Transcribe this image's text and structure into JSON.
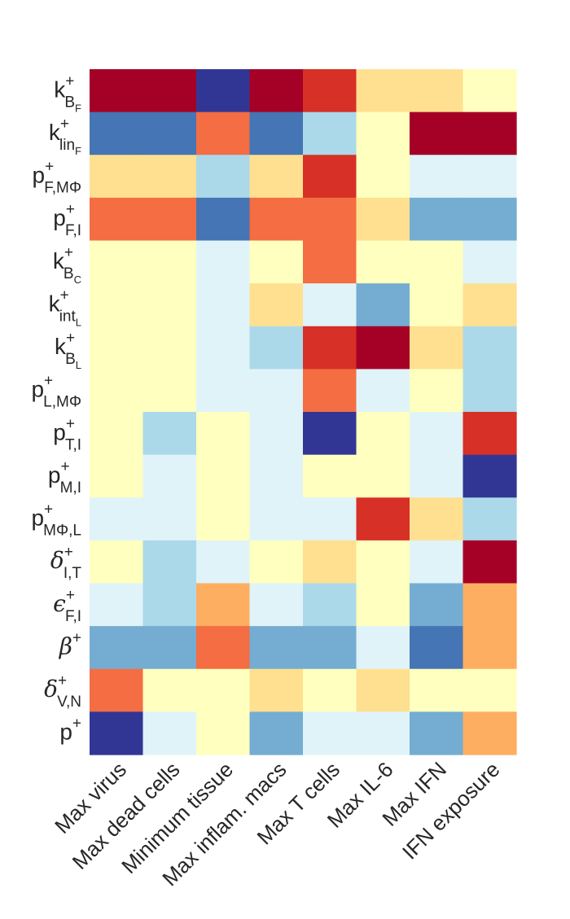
{
  "chart_data": {
    "type": "heatmap",
    "title": "",
    "xlabel": "",
    "ylabel": "",
    "colorbar": false,
    "colormap": "RdYlBu_r (discrete levels -4 .. 4: dark blue to dark red)",
    "palette": {
      "-4": "#313695",
      "-3": "#4575b4",
      "-2": "#74add1",
      "-1": "#abd9e9",
      "0": "#e0f3f8",
      "1": "#ffffbf",
      "2": "#fee090",
      "3": "#fdae61",
      "4": "#f46d43",
      "5": "#d73027",
      "6": "#a50026"
    },
    "columns": [
      "Max virus",
      "Max dead cells",
      "Minimum tissue",
      "Max inflam. macs",
      "Max T cells",
      "Max IL-6",
      "Max IFN",
      "IFN exposure"
    ],
    "rows": [
      {
        "base": "k",
        "sup": "+",
        "sub": "B",
        "subsub": "F",
        "greek": false
      },
      {
        "base": "k",
        "sup": "+",
        "sub": "lin",
        "subsub": "F",
        "greek": false
      },
      {
        "base": "p",
        "sup": "+",
        "sub": "F,MΦ",
        "subsub": "",
        "greek": false
      },
      {
        "base": "p",
        "sup": "+",
        "sub": "F,I",
        "subsub": "",
        "greek": false
      },
      {
        "base": "k",
        "sup": "+",
        "sub": "B",
        "subsub": "C",
        "greek": false
      },
      {
        "base": "k",
        "sup": "+",
        "sub": "int",
        "subsub": "L",
        "greek": false
      },
      {
        "base": "k",
        "sup": "+",
        "sub": "B",
        "subsub": "L",
        "greek": false
      },
      {
        "base": "p",
        "sup": "+",
        "sub": "L,MΦ",
        "subsub": "",
        "greek": false
      },
      {
        "base": "p",
        "sup": "+",
        "sub": "T,I",
        "subsub": "",
        "greek": false
      },
      {
        "base": "p",
        "sup": "+",
        "sub": "M,I",
        "subsub": "",
        "greek": false
      },
      {
        "base": "p",
        "sup": "+",
        "sub": "MΦ,L",
        "subsub": "",
        "greek": false
      },
      {
        "base": "δ",
        "sup": "+",
        "sub": "I,T",
        "subsub": "",
        "greek": true
      },
      {
        "base": "ϵ",
        "sup": "+",
        "sub": "F,I",
        "subsub": "",
        "greek": true
      },
      {
        "base": "β",
        "sup": "+",
        "sub": "",
        "subsub": "",
        "greek": true
      },
      {
        "base": "δ",
        "sup": "+",
        "sub": "V,N",
        "subsub": "",
        "greek": true
      },
      {
        "base": "p",
        "sup": "+",
        "sub": "",
        "subsub": "",
        "greek": false
      }
    ],
    "values": [
      [
        6,
        6,
        -4,
        6,
        5,
        2,
        2,
        1
      ],
      [
        -3,
        -3,
        4,
        -3,
        -1,
        1,
        6,
        6
      ],
      [
        2,
        2,
        -1,
        2,
        5,
        1,
        0,
        0
      ],
      [
        4,
        4,
        -3,
        4,
        4,
        2,
        -2,
        -2
      ],
      [
        1,
        1,
        0,
        1,
        4,
        1,
        1,
        0
      ],
      [
        1,
        1,
        0,
        2,
        0,
        -2,
        1,
        2
      ],
      [
        1,
        1,
        0,
        -1,
        5,
        6,
        2,
        -1
      ],
      [
        1,
        1,
        0,
        0,
        4,
        0,
        1,
        -1
      ],
      [
        1,
        -1,
        1,
        0,
        -4,
        1,
        0,
        5
      ],
      [
        1,
        0,
        1,
        0,
        1,
        1,
        0,
        -4
      ],
      [
        0,
        0,
        1,
        0,
        0,
        5,
        2,
        -1
      ],
      [
        1,
        -1,
        0,
        1,
        2,
        1,
        0,
        6
      ],
      [
        0,
        -1,
        3,
        0,
        -1,
        1,
        -2,
        3
      ],
      [
        -2,
        -2,
        4,
        -2,
        -2,
        0,
        -3,
        3
      ],
      [
        4,
        1,
        1,
        2,
        1,
        2,
        1,
        1
      ],
      [
        -4,
        0,
        1,
        -2,
        0,
        0,
        -2,
        3
      ]
    ]
  }
}
